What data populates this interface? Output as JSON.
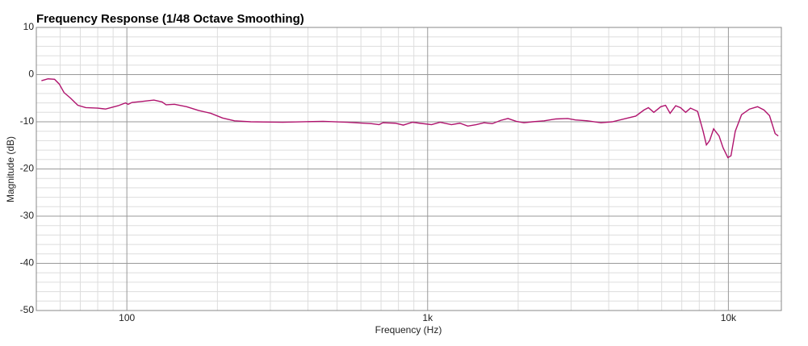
{
  "chart_data": {
    "type": "line",
    "title": "Frequency Response (1/48 Octave Smoothing)",
    "x_label": "Frequency (Hz)",
    "y_label": "Magnitude (dB)",
    "x_scale": "log",
    "xlim": [
      50,
      15000
    ],
    "ylim": [
      -50,
      10
    ],
    "xticks": [
      100,
      {
        "value": 1000,
        "label": "1k"
      },
      {
        "value": 10000,
        "label": "10k"
      }
    ],
    "yticks": [
      10,
      0,
      -10,
      -20,
      -30,
      -40,
      -50
    ],
    "minor_xticks": [
      60,
      70,
      80,
      90,
      200,
      300,
      400,
      500,
      600,
      700,
      800,
      900,
      2000,
      3000,
      4000,
      5000,
      6000,
      7000,
      8000,
      9000
    ],
    "minor_yticks": [
      8,
      6,
      4,
      2,
      -2,
      -4,
      -6,
      -8,
      -12,
      -14,
      -16,
      -18,
      -22,
      -24,
      -26,
      -28,
      -32,
      -34,
      -36,
      -38,
      -42,
      -44,
      -46,
      -48
    ],
    "grid": true,
    "series": [
      {
        "color": "#b0146e",
        "x": [
          52,
          54.7,
          57.5,
          59.6,
          61.8,
          65,
          68.7,
          73,
          80,
          85,
          93.5,
          99,
          101,
          104,
          112,
          123,
          131,
          135,
          144,
          158,
          173,
          190,
          208,
          228,
          258,
          330,
          449,
          540,
          650,
          690,
          710,
          780,
          830,
          890,
          940,
          1030,
          1100,
          1200,
          1280,
          1360,
          1450,
          1540,
          1640,
          1750,
          1850,
          1970,
          2090,
          2230,
          2440,
          2670,
          2920,
          3100,
          3400,
          3770,
          4110,
          4500,
          4920,
          5240,
          5420,
          5650,
          5960,
          6180,
          6400,
          6680,
          6930,
          7210,
          7480,
          7900,
          8240,
          8450,
          8660,
          8930,
          9310,
          9600,
          9960,
          10200,
          10540,
          11060,
          11760,
          12500,
          13130,
          13700,
          14300,
          14650
        ],
        "values": [
          -1.3,
          -0.9,
          -1.0,
          -2.0,
          -3.8,
          -5.0,
          -6.5,
          -7.0,
          -7.1,
          -7.3,
          -6.6,
          -6.0,
          -6.3,
          -5.9,
          -5.7,
          -5.4,
          -5.8,
          -6.4,
          -6.3,
          -6.8,
          -7.6,
          -8.2,
          -9.2,
          -9.8,
          -10.0,
          -10.1,
          -9.9,
          -10.1,
          -10.4,
          -10.6,
          -10.2,
          -10.3,
          -10.7,
          -10.1,
          -10.3,
          -10.6,
          -10.1,
          -10.6,
          -10.3,
          -10.9,
          -10.6,
          -10.2,
          -10.4,
          -9.7,
          -9.3,
          -9.9,
          -10.2,
          -10.0,
          -9.8,
          -9.4,
          -9.3,
          -9.6,
          -9.8,
          -10.2,
          -10.0,
          -9.4,
          -8.8,
          -7.5,
          -7.0,
          -8.0,
          -6.8,
          -6.5,
          -8.2,
          -6.6,
          -7.0,
          -8.0,
          -7.1,
          -7.8,
          -12.0,
          -14.9,
          -14.0,
          -11.5,
          -13.0,
          -15.5,
          -17.6,
          -17.2,
          -12.0,
          -8.5,
          -7.3,
          -6.8,
          -7.5,
          -8.7,
          -12.5,
          -13.0
        ]
      }
    ]
  }
}
